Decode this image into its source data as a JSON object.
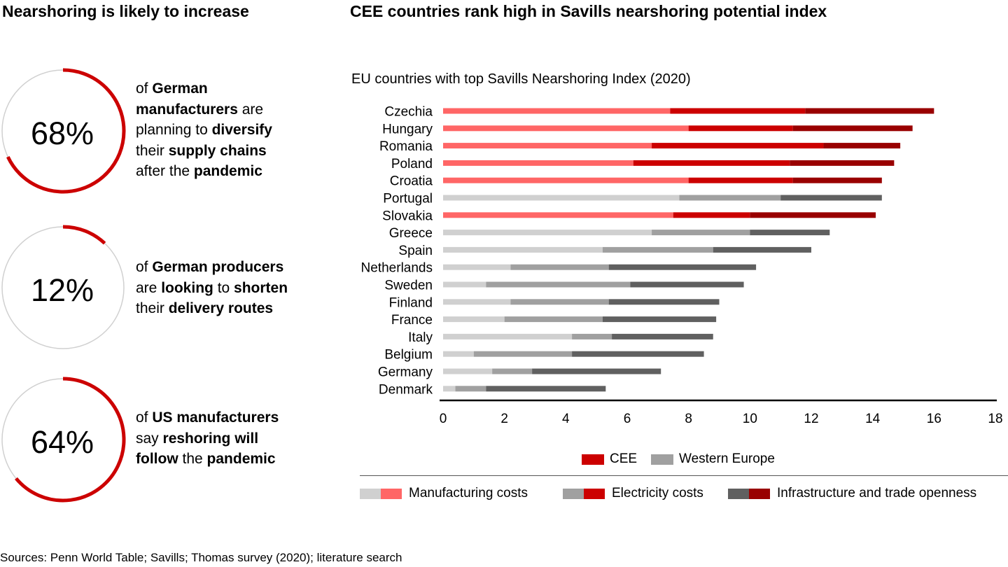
{
  "left_title": "Nearshoring is likely to increase",
  "right_title": "CEE countries rank high in Savills nearshoring potential index",
  "stats": [
    {
      "value": 68,
      "label": "68%",
      "parts": [
        {
          "t": "of ",
          "b": false
        },
        {
          "t": "German manufacturers",
          "b": true
        },
        {
          "t": " are planning to ",
          "b": false
        },
        {
          "t": "diversify",
          "b": true
        },
        {
          "t": " their ",
          "b": false
        },
        {
          "t": "supply chains",
          "b": true
        },
        {
          "t": " after the ",
          "b": false
        },
        {
          "t": "pandemic",
          "b": true
        }
      ],
      "lines": [
        [
          "of ",
          "German"
        ],
        [
          "manufacturers",
          " are"
        ],
        [
          "planning to ",
          "diversify"
        ],
        [
          "their ",
          "supply chains"
        ],
        [
          "after the ",
          "pandemic"
        ]
      ]
    },
    {
      "value": 12,
      "label": "12%"
    },
    {
      "value": 64,
      "label": "64%"
    }
  ],
  "stat_texts": {
    "s1": {
      "l1a": "of ",
      "l1b": "German",
      "l2a": "manufacturers",
      "l2b": " are",
      "l3a": "planning to ",
      "l3b": "diversify",
      "l4a": "their ",
      "l4b": "supply chains",
      "l5a": "after the ",
      "l5b": "pandemic"
    },
    "s2": {
      "l1a": "of ",
      "l1b": "German producers",
      "l2a": "are ",
      "l2b": "looking",
      "l2c": " to ",
      "l2d": "shorten",
      "l3a": "their ",
      "l3b": "delivery routes"
    },
    "s3": {
      "l1a": "of ",
      "l1b": "US manufacturers",
      "l2a": "say ",
      "l2b": "reshoring will",
      "l3a": "follow",
      "l3b": " the ",
      "l3c": "pandemic"
    }
  },
  "colors": {
    "accent_red": "#cc0000",
    "ring_gray": "#d0d0d0",
    "cee": [
      "#ff6666",
      "#cc0000",
      "#990000"
    ],
    "we": [
      "#d0d0d0",
      "#a0a0a0",
      "#606060"
    ]
  },
  "chart_data": {
    "type": "bar",
    "orientation": "horizontal",
    "stacked": true,
    "title": "EU countries with top Savills Nearshoring Index (2020)",
    "xlabel": "",
    "ylabel": "",
    "xlim": [
      0,
      18
    ],
    "xticks": [
      0,
      2,
      4,
      6,
      8,
      10,
      12,
      14,
      16,
      18
    ],
    "grid": false,
    "categories": [
      "Czechia",
      "Hungary",
      "Romania",
      "Poland",
      "Croatia",
      "Portugal",
      "Slovakia",
      "Greece",
      "Spain",
      "Netherlands",
      "Sweden",
      "Finland",
      "France",
      "Italy",
      "Belgium",
      "Germany",
      "Denmark"
    ],
    "group": [
      "CEE",
      "CEE",
      "CEE",
      "CEE",
      "CEE",
      "WE",
      "CEE",
      "WE",
      "WE",
      "WE",
      "WE",
      "WE",
      "WE",
      "WE",
      "WE",
      "WE",
      "WE"
    ],
    "series": [
      {
        "name": "Manufacturing costs",
        "values": [
          7.4,
          8.0,
          6.8,
          6.2,
          8.0,
          7.7,
          7.5,
          6.8,
          5.2,
          2.2,
          1.4,
          2.2,
          2.0,
          4.2,
          1.0,
          1.6,
          0.4
        ]
      },
      {
        "name": "Electricity costs",
        "values": [
          4.4,
          3.4,
          5.6,
          5.1,
          3.4,
          3.3,
          2.5,
          3.2,
          3.6,
          3.2,
          4.7,
          3.2,
          3.2,
          1.3,
          3.2,
          1.3,
          1.0
        ]
      },
      {
        "name": "Infrastructure and trade openness",
        "values": [
          4.2,
          3.9,
          2.5,
          3.4,
          2.9,
          3.3,
          4.1,
          2.6,
          3.2,
          4.8,
          3.7,
          3.6,
          3.7,
          3.3,
          4.3,
          4.2,
          3.9
        ]
      }
    ],
    "legend_groups": [
      {
        "name": "CEE"
      },
      {
        "name": "Western Europe"
      }
    ],
    "legend_placement": "bottom"
  },
  "source": "Sources: Penn World Table; Savills; Thomas survey (2020); literature search"
}
